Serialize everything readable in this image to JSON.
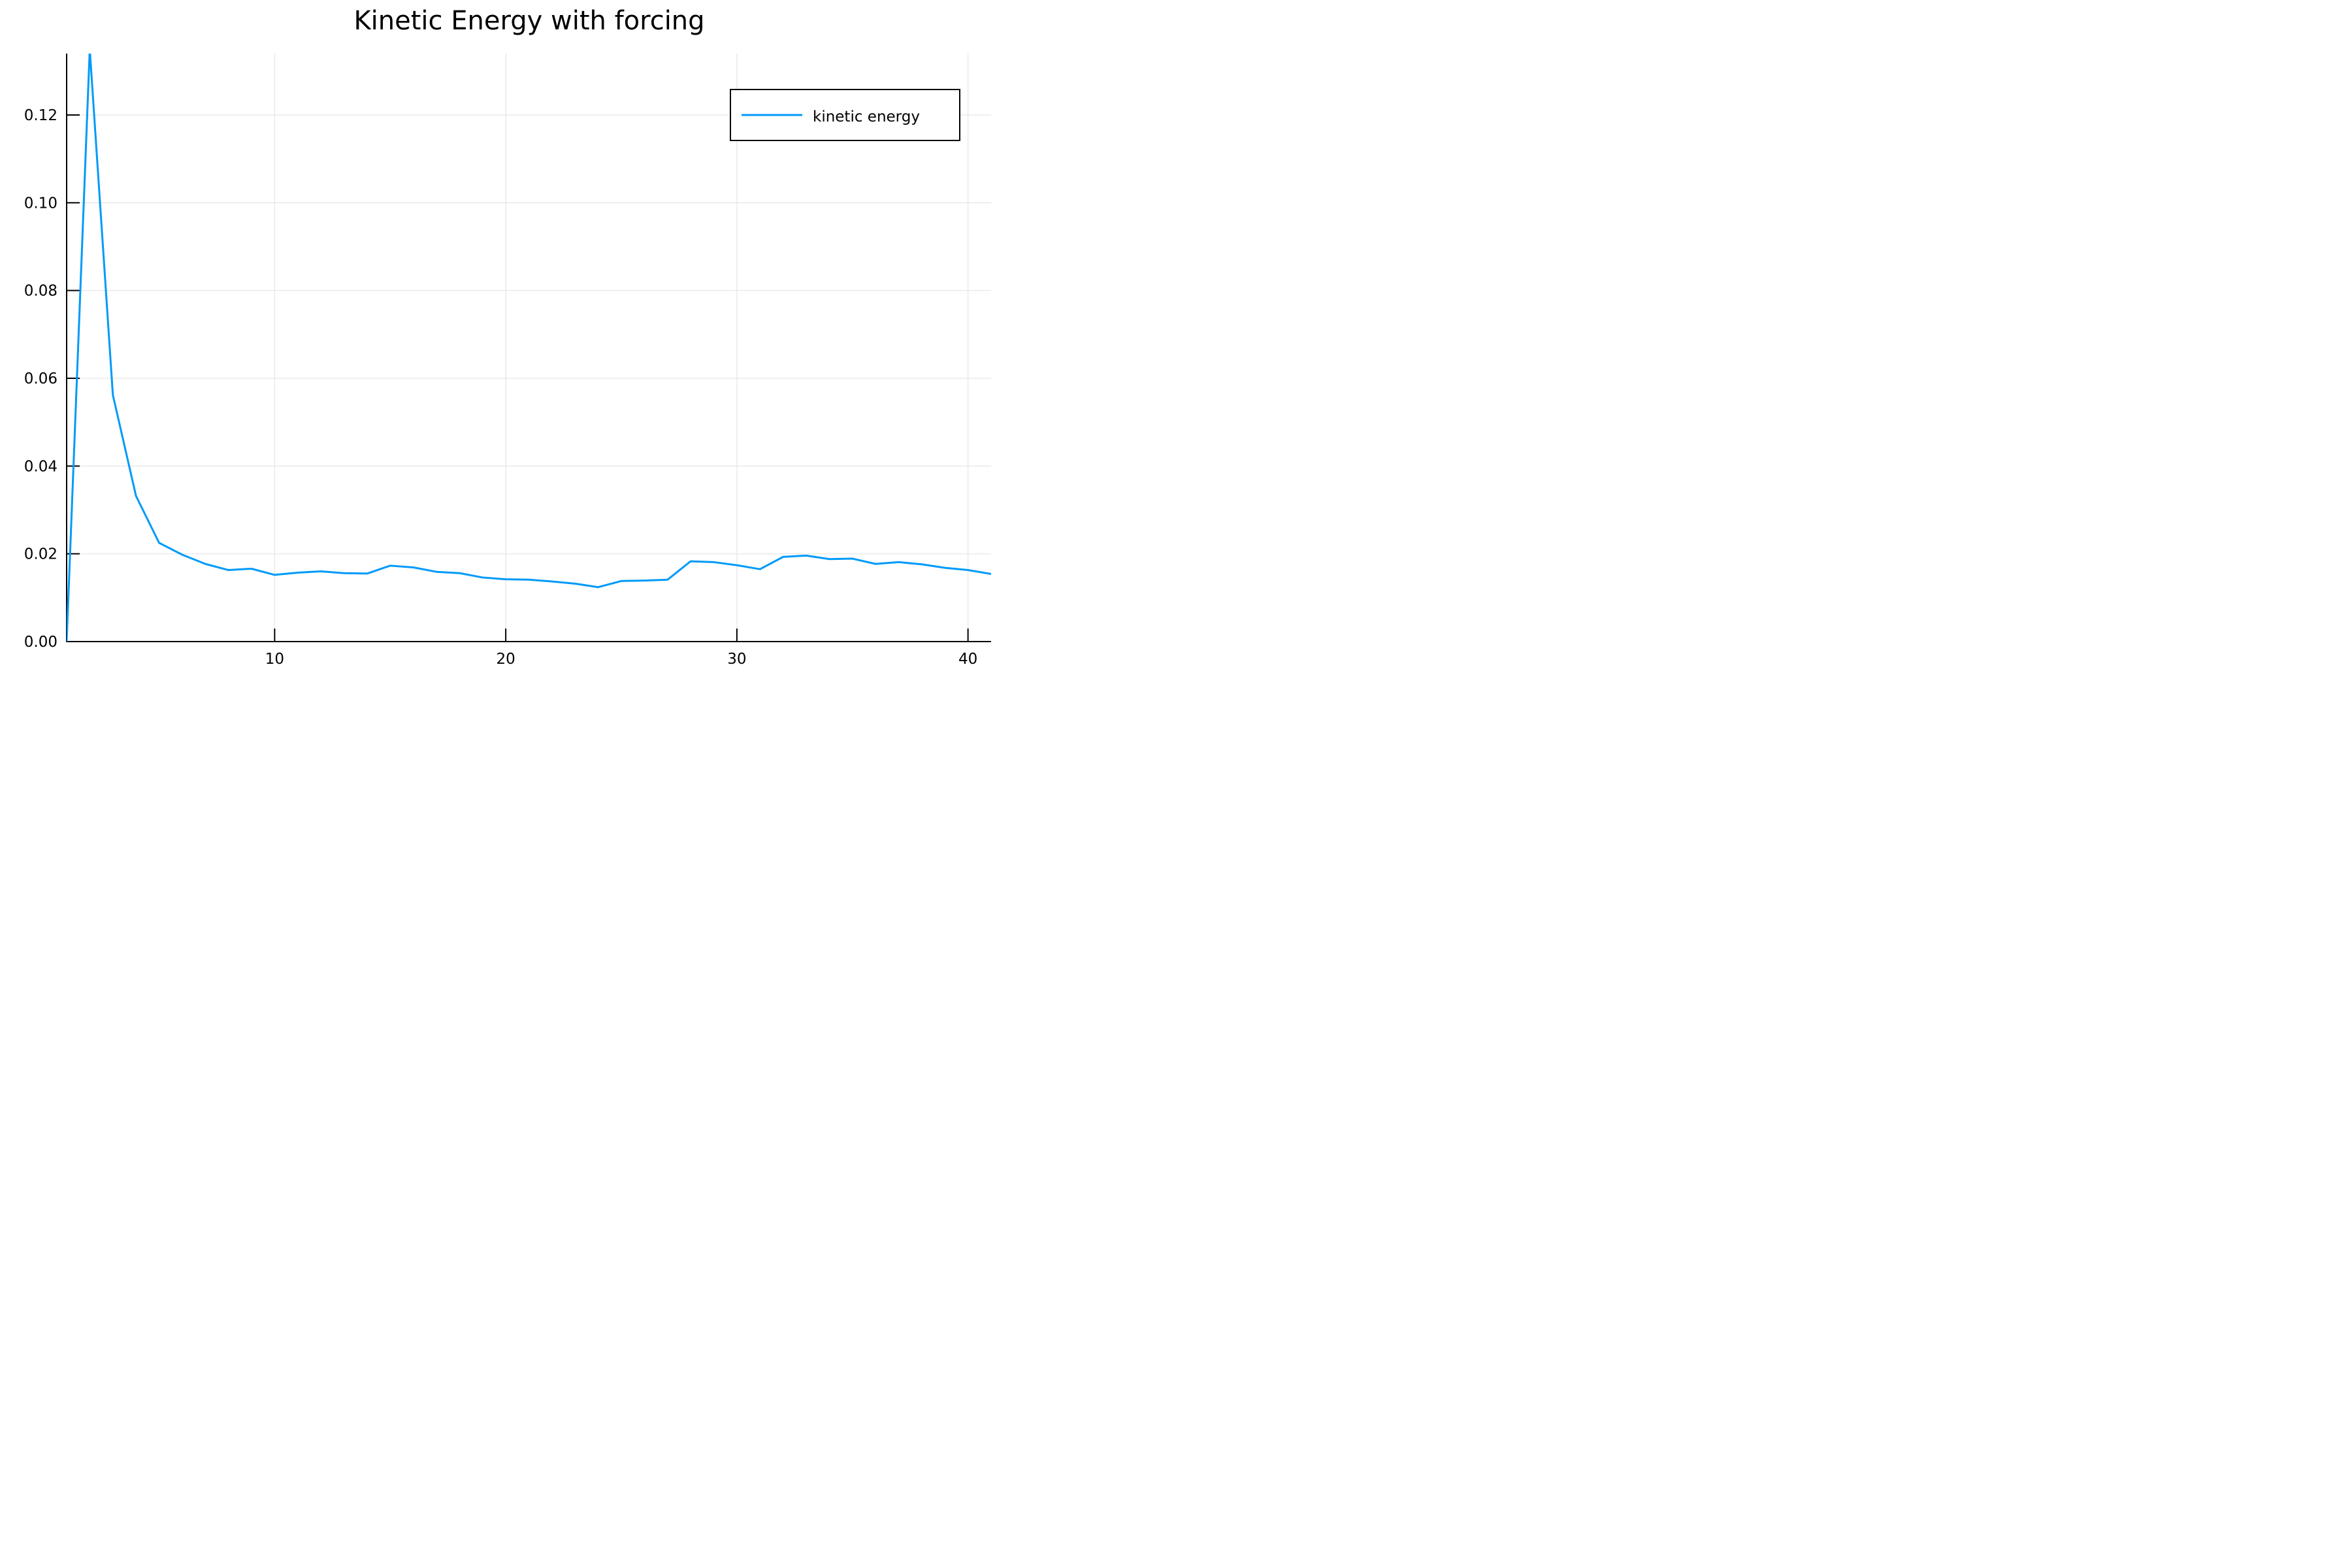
{
  "chart_data": {
    "type": "line",
    "title": "Kinetic Energy with forcing",
    "xlabel": "",
    "ylabel": "",
    "xlim": [
      1,
      41
    ],
    "ylim": [
      0,
      0.134
    ],
    "x_ticks": [
      10,
      20,
      30,
      40
    ],
    "x_tick_labels": [
      "10",
      "20",
      "30",
      "40"
    ],
    "y_ticks": [
      0.0,
      0.02,
      0.04,
      0.06,
      0.08,
      0.1,
      0.12
    ],
    "y_tick_labels": [
      "0.00",
      "0.02",
      "0.04",
      "0.06",
      "0.08",
      "0.10",
      "0.12"
    ],
    "grid": true,
    "legend_position": "top-right",
    "series": [
      {
        "name": "kinetic energy",
        "color": "#009AF9",
        "x": [
          1,
          2,
          3,
          4,
          5,
          6,
          7,
          8,
          9,
          10,
          11,
          12,
          13,
          14,
          15,
          16,
          17,
          18,
          19,
          20,
          21,
          22,
          23,
          24,
          25,
          26,
          27,
          28,
          29,
          30,
          31,
          32,
          33,
          34,
          35,
          36,
          37,
          38,
          39,
          40,
          41
        ],
        "y": [
          0.0,
          0.135,
          0.0562,
          0.0332,
          0.0225,
          0.0198,
          0.0177,
          0.0163,
          0.0166,
          0.0152,
          0.0157,
          0.016,
          0.0156,
          0.0155,
          0.0173,
          0.0169,
          0.0159,
          0.0156,
          0.0146,
          0.0142,
          0.0141,
          0.0137,
          0.0132,
          0.0124,
          0.0138,
          0.0139,
          0.0141,
          0.0183,
          0.0181,
          0.0174,
          0.0165,
          0.0193,
          0.0196,
          0.0188,
          0.0189,
          0.0177,
          0.0181,
          0.0176,
          0.0168,
          0.0163,
          0.0154
        ]
      }
    ]
  }
}
